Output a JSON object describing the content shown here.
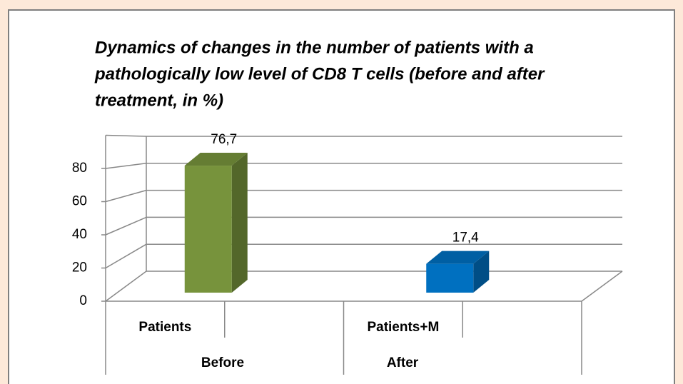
{
  "chart_data": {
    "type": "bar3d",
    "title_lines": [
      "Dynamics of changes in the number of patients with a",
      "pathologically low level of CD8 T cells (before and after",
      "treatment, in %)"
    ],
    "categories": [
      "Patients",
      "Patients+M"
    ],
    "groups": [
      "Before",
      "After"
    ],
    "values": [
      76.7,
      17.4
    ],
    "value_labels": [
      "76,7",
      "17,4"
    ],
    "colors": [
      "#77933c",
      "#0070c0"
    ],
    "ylim": [
      0,
      100
    ],
    "yticks": [
      0,
      20,
      40,
      60,
      80
    ],
    "grid": true
  }
}
